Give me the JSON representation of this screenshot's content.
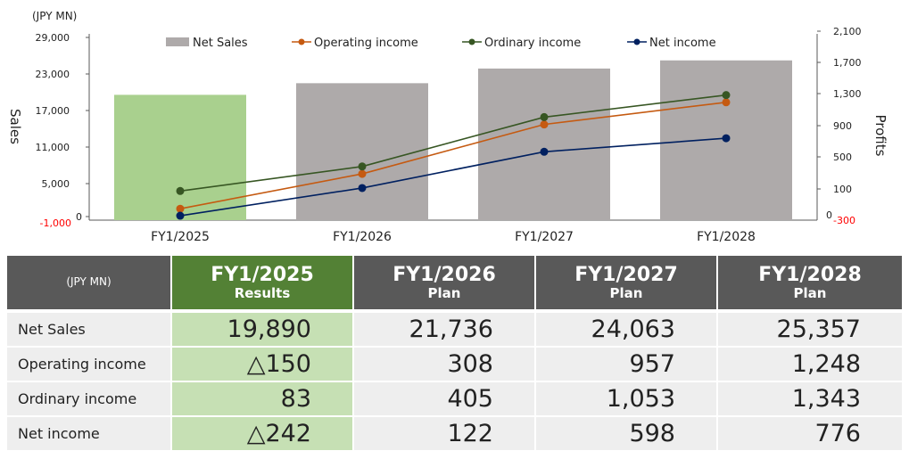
{
  "chart_data": {
    "type": "bar",
    "categories": [
      "FY1/2025",
      "FY1/2026",
      "FY1/2027",
      "FY1/2028"
    ],
    "unit_label": "(JPY MN)",
    "left_axis": {
      "label": "Sales",
      "ticks": [
        "29,000",
        "23,000",
        "17,000",
        "11,000",
        "5,000",
        "0",
        "-1,000"
      ],
      "range": [
        -1000,
        29000
      ]
    },
    "right_axis": {
      "label": "Profits",
      "ticks": [
        "2,100",
        "1,700",
        "1,300",
        "900",
        "500",
        "100",
        "0",
        "-300"
      ],
      "range": [
        -300,
        2100
      ]
    },
    "series": [
      {
        "name": "Net Sales",
        "kind": "bar",
        "axis": "left",
        "values": [
          19890,
          21736,
          24063,
          25357
        ],
        "color": "#aeaaaa",
        "highlight_color": "#a9d08e"
      },
      {
        "name": "Operating income",
        "kind": "line",
        "axis": "right",
        "values": [
          -150,
          308,
          957,
          1248
        ],
        "color": "#c55a11"
      },
      {
        "name": "Ordinary income",
        "kind": "line",
        "axis": "right",
        "values": [
          83,
          405,
          1053,
          1343
        ],
        "color": "#375623"
      },
      {
        "name": "Net income",
        "kind": "line",
        "axis": "right",
        "values": [
          -242,
          122,
          598,
          776
        ],
        "color": "#002060"
      }
    ],
    "legend_position": "top"
  },
  "table": {
    "unit": "(JPY MN)",
    "headers": [
      {
        "year": "FY1/2025",
        "status": "Results"
      },
      {
        "year": "FY1/2026",
        "status": "Plan"
      },
      {
        "year": "FY1/2027",
        "status": "Plan"
      },
      {
        "year": "FY1/2028",
        "status": "Plan"
      }
    ],
    "rows": [
      {
        "label": "Net Sales",
        "values": [
          "19,890",
          "21,736",
          "24,063",
          "25,357"
        ]
      },
      {
        "label": "Operating income",
        "values": [
          "△150",
          "308",
          "957",
          "1,248"
        ]
      },
      {
        "label": "Ordinary income",
        "values": [
          "83",
          "405",
          "1,053",
          "1,343"
        ]
      },
      {
        "label": "Net income",
        "values": [
          "△242",
          "122",
          "598",
          "776"
        ]
      }
    ]
  },
  "colors": {
    "header_gray": "#595959",
    "header_green": "#538135",
    "result_cell": "#c6e0b4",
    "plan_cell": "#eeeeee",
    "negative_tick": "#ff0000"
  }
}
